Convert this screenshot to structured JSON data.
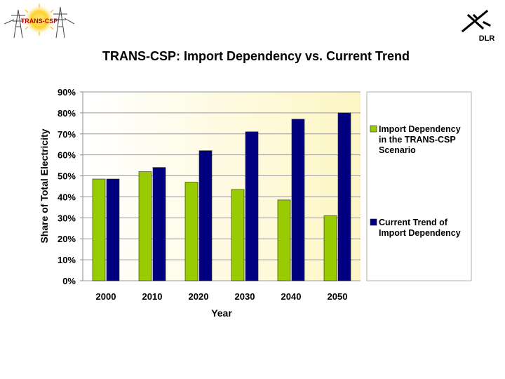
{
  "logos": {
    "left_text": "TRANS-CSP",
    "right_text": "DLR"
  },
  "chart_data": {
    "type": "bar",
    "title": "TRANS-CSP: Import Dependency vs. Current Trend",
    "xlabel": "Year",
    "ylabel": "Share of Total Electricity",
    "categories": [
      "2000",
      "2010",
      "2020",
      "2030",
      "2040",
      "2050"
    ],
    "ylim": [
      0,
      90
    ],
    "yticks": [
      0,
      10,
      20,
      30,
      40,
      50,
      60,
      70,
      80,
      90
    ],
    "ytick_labels": [
      "0%",
      "10%",
      "20%",
      "30%",
      "40%",
      "50%",
      "60%",
      "70%",
      "80%",
      "90%"
    ],
    "grid": true,
    "legend_position": "right",
    "series": [
      {
        "name": "Import Dependency in the TRANS-CSP Scenario",
        "legend_lines": [
          "Import Dependency",
          "in the TRANS-CSP",
          "Scenario"
        ],
        "color": "#99cc00",
        "values": [
          48.5,
          52,
          47,
          43.5,
          38.5,
          31
        ]
      },
      {
        "name": "Current Trend of Import Dependency",
        "legend_lines": [
          "Current Trend of",
          "Import Dependency"
        ],
        "color": "#000080",
        "values": [
          48.5,
          54,
          62,
          71,
          77,
          80
        ]
      }
    ]
  }
}
